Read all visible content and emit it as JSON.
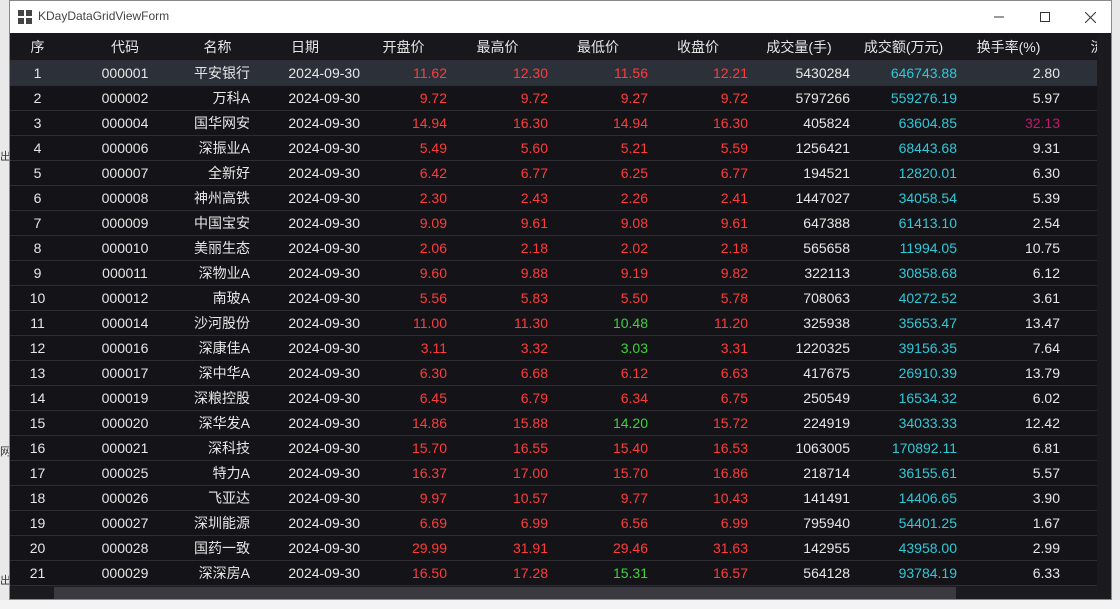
{
  "window": {
    "title": "KDayDataGridViewForm",
    "minimize_icon": "minimize-icon",
    "maximize_icon": "maximize-icon",
    "close_icon": "close-icon"
  },
  "background_fragments": [
    "出",
    "网",
    "出"
  ],
  "grid": {
    "columns": [
      "序",
      "代码",
      "名称",
      "日期",
      "开盘价",
      "最高价",
      "最低价",
      "收盘价",
      "成交量(手)",
      "成交额(万元)",
      "换手率(%)",
      "流"
    ],
    "colors": {
      "up": "#ff3c3c",
      "down": "#3fd13f",
      "amount": "#2fc8d8",
      "highlight": "#c2186d",
      "text": "#e6e6e6"
    },
    "rows": [
      {
        "seq": "1",
        "code": "000001",
        "name": "平安银行",
        "date": "2024-09-30",
        "open": "11.62",
        "high": "12.30",
        "low": "11.56",
        "close": "12.21",
        "volume": "5430284",
        "amount": "646743.88",
        "turnover": "2.80",
        "open_dir": "up",
        "high_dir": "up",
        "low_dir": "up",
        "close_dir": "up"
      },
      {
        "seq": "2",
        "code": "000002",
        "name": "万科A",
        "date": "2024-09-30",
        "open": "9.72",
        "high": "9.72",
        "low": "9.27",
        "close": "9.72",
        "volume": "5797266",
        "amount": "559276.19",
        "turnover": "5.97",
        "open_dir": "up",
        "high_dir": "up",
        "low_dir": "up",
        "close_dir": "up"
      },
      {
        "seq": "3",
        "code": "000004",
        "name": "国华网安",
        "date": "2024-09-30",
        "open": "14.94",
        "high": "16.30",
        "low": "14.94",
        "close": "16.30",
        "volume": "405824",
        "amount": "63604.85",
        "turnover": "32.13",
        "turnover_highlight": true,
        "open_dir": "up",
        "high_dir": "up",
        "low_dir": "up",
        "close_dir": "up"
      },
      {
        "seq": "4",
        "code": "000006",
        "name": "深振业A",
        "date": "2024-09-30",
        "open": "5.49",
        "high": "5.60",
        "low": "5.21",
        "close": "5.59",
        "volume": "1256421",
        "amount": "68443.68",
        "turnover": "9.31",
        "open_dir": "up",
        "high_dir": "up",
        "low_dir": "up",
        "close_dir": "up"
      },
      {
        "seq": "5",
        "code": "000007",
        "name": "全新好",
        "date": "2024-09-30",
        "open": "6.42",
        "high": "6.77",
        "low": "6.25",
        "close": "6.77",
        "volume": "194521",
        "amount": "12820.01",
        "turnover": "6.30",
        "open_dir": "up",
        "high_dir": "up",
        "low_dir": "up",
        "close_dir": "up"
      },
      {
        "seq": "6",
        "code": "000008",
        "name": "神州高铁",
        "date": "2024-09-30",
        "open": "2.30",
        "high": "2.43",
        "low": "2.26",
        "close": "2.41",
        "volume": "1447027",
        "amount": "34058.54",
        "turnover": "5.39",
        "open_dir": "up",
        "high_dir": "up",
        "low_dir": "up",
        "close_dir": "up"
      },
      {
        "seq": "7",
        "code": "000009",
        "name": "中国宝安",
        "date": "2024-09-30",
        "open": "9.09",
        "high": "9.61",
        "low": "9.08",
        "close": "9.61",
        "volume": "647388",
        "amount": "61413.10",
        "turnover": "2.54",
        "open_dir": "up",
        "high_dir": "up",
        "low_dir": "up",
        "close_dir": "up"
      },
      {
        "seq": "8",
        "code": "000010",
        "name": "美丽生态",
        "date": "2024-09-30",
        "open": "2.06",
        "high": "2.18",
        "low": "2.02",
        "close": "2.18",
        "volume": "565658",
        "amount": "11994.05",
        "turnover": "10.75",
        "open_dir": "up",
        "high_dir": "up",
        "low_dir": "up",
        "close_dir": "up"
      },
      {
        "seq": "9",
        "code": "000011",
        "name": "深物业A",
        "date": "2024-09-30",
        "open": "9.60",
        "high": "9.88",
        "low": "9.19",
        "close": "9.82",
        "volume": "322113",
        "amount": "30858.68",
        "turnover": "6.12",
        "open_dir": "up",
        "high_dir": "up",
        "low_dir": "up",
        "close_dir": "up"
      },
      {
        "seq": "10",
        "code": "000012",
        "name": "南玻A",
        "date": "2024-09-30",
        "open": "5.56",
        "high": "5.83",
        "low": "5.50",
        "close": "5.78",
        "volume": "708063",
        "amount": "40272.52",
        "turnover": "3.61",
        "open_dir": "up",
        "high_dir": "up",
        "low_dir": "up",
        "close_dir": "up"
      },
      {
        "seq": "11",
        "code": "000014",
        "name": "沙河股份",
        "date": "2024-09-30",
        "open": "11.00",
        "high": "11.30",
        "low": "10.48",
        "close": "11.20",
        "volume": "325938",
        "amount": "35653.47",
        "turnover": "13.47",
        "open_dir": "up",
        "high_dir": "up",
        "low_dir": "down",
        "close_dir": "up"
      },
      {
        "seq": "12",
        "code": "000016",
        "name": "深康佳A",
        "date": "2024-09-30",
        "open": "3.11",
        "high": "3.32",
        "low": "3.03",
        "close": "3.31",
        "volume": "1220325",
        "amount": "39156.35",
        "turnover": "7.64",
        "open_dir": "up",
        "high_dir": "up",
        "low_dir": "down",
        "close_dir": "up"
      },
      {
        "seq": "13",
        "code": "000017",
        "name": "深中华A",
        "date": "2024-09-30",
        "open": "6.30",
        "high": "6.68",
        "low": "6.12",
        "close": "6.63",
        "volume": "417675",
        "amount": "26910.39",
        "turnover": "13.79",
        "open_dir": "up",
        "high_dir": "up",
        "low_dir": "up",
        "close_dir": "up"
      },
      {
        "seq": "14",
        "code": "000019",
        "name": "深粮控股",
        "date": "2024-09-30",
        "open": "6.45",
        "high": "6.79",
        "low": "6.34",
        "close": "6.75",
        "volume": "250549",
        "amount": "16534.32",
        "turnover": "6.02",
        "open_dir": "up",
        "high_dir": "up",
        "low_dir": "up",
        "close_dir": "up"
      },
      {
        "seq": "15",
        "code": "000020",
        "name": "深华发A",
        "date": "2024-09-30",
        "open": "14.86",
        "high": "15.88",
        "low": "14.20",
        "close": "15.72",
        "volume": "224919",
        "amount": "34033.33",
        "turnover": "12.42",
        "open_dir": "up",
        "high_dir": "up",
        "low_dir": "down",
        "close_dir": "up"
      },
      {
        "seq": "16",
        "code": "000021",
        "name": "深科技",
        "date": "2024-09-30",
        "open": "15.70",
        "high": "16.55",
        "low": "15.40",
        "close": "16.53",
        "volume": "1063005",
        "amount": "170892.11",
        "turnover": "6.81",
        "open_dir": "up",
        "high_dir": "up",
        "low_dir": "up",
        "close_dir": "up"
      },
      {
        "seq": "17",
        "code": "000025",
        "name": "特力A",
        "date": "2024-09-30",
        "open": "16.37",
        "high": "17.00",
        "low": "15.70",
        "close": "16.86",
        "volume": "218714",
        "amount": "36155.61",
        "turnover": "5.57",
        "open_dir": "up",
        "high_dir": "up",
        "low_dir": "up",
        "close_dir": "up"
      },
      {
        "seq": "18",
        "code": "000026",
        "name": "飞亚达",
        "date": "2024-09-30",
        "open": "9.97",
        "high": "10.57",
        "low": "9.77",
        "close": "10.43",
        "volume": "141491",
        "amount": "14406.65",
        "turnover": "3.90",
        "open_dir": "up",
        "high_dir": "up",
        "low_dir": "up",
        "close_dir": "up"
      },
      {
        "seq": "19",
        "code": "000027",
        "name": "深圳能源",
        "date": "2024-09-30",
        "open": "6.69",
        "high": "6.99",
        "low": "6.56",
        "close": "6.99",
        "volume": "795940",
        "amount": "54401.25",
        "turnover": "1.67",
        "open_dir": "up",
        "high_dir": "up",
        "low_dir": "up",
        "close_dir": "up"
      },
      {
        "seq": "20",
        "code": "000028",
        "name": "国药一致",
        "date": "2024-09-30",
        "open": "29.99",
        "high": "31.91",
        "low": "29.46",
        "close": "31.63",
        "volume": "142955",
        "amount": "43958.00",
        "turnover": "2.99",
        "open_dir": "up",
        "high_dir": "up",
        "low_dir": "up",
        "close_dir": "up"
      },
      {
        "seq": "21",
        "code": "000029",
        "name": "深深房A",
        "date": "2024-09-30",
        "open": "16.50",
        "high": "17.28",
        "low": "15.31",
        "close": "16.57",
        "volume": "564128",
        "amount": "93784.19",
        "turnover": "6.33",
        "open_dir": "up",
        "high_dir": "up",
        "low_dir": "down",
        "close_dir": "up"
      }
    ]
  }
}
